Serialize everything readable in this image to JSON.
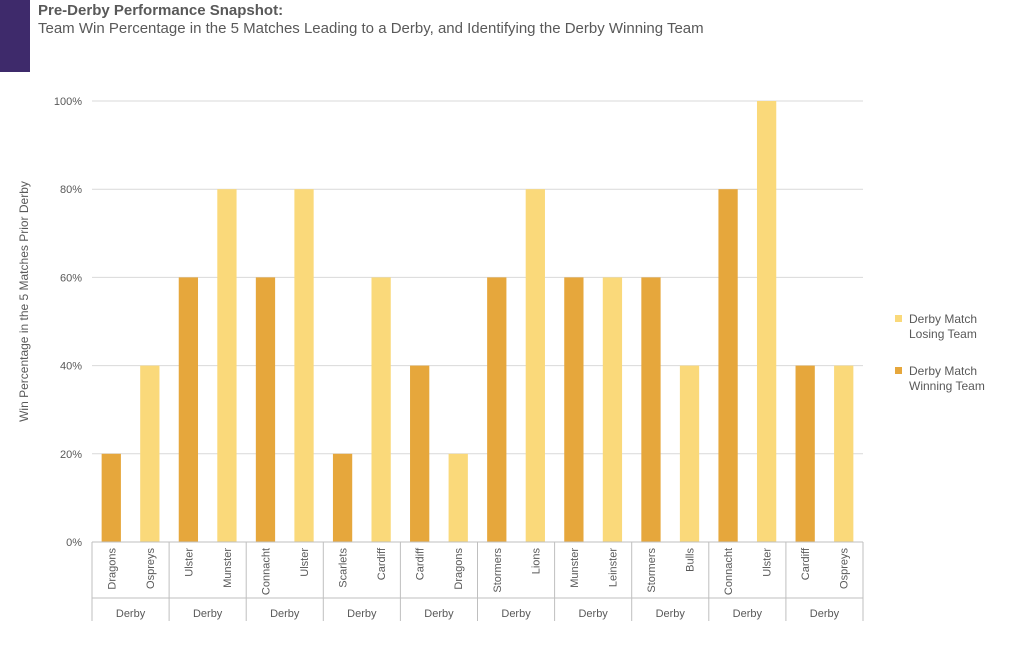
{
  "header": {
    "title": "Pre-Derby Performance Snapshot:",
    "subtitle": "Team Win Percentage in the 5 Matches Leading to a Derby, and Identifying the Derby Winning Team",
    "accent_color": "#3e2a6b"
  },
  "chart_data": {
    "type": "bar",
    "title": "Pre-Derby Performance Snapshot:",
    "subtitle": "Team Win Percentage in the 5 Matches Leading to a Derby, and Identifying the Derby Winning Team",
    "xlabel": "",
    "ylabel": "Win Percentage in the 5 Matches Prior Derby",
    "ylim": [
      0,
      100
    ],
    "yticks": [
      "0%",
      "20%",
      "40%",
      "60%",
      "80%",
      "100%"
    ],
    "grid": true,
    "legend_position": "right",
    "groups": [
      {
        "label": "Derby",
        "teams": [
          {
            "team": "Dragons",
            "value": 20,
            "result": "winning"
          },
          {
            "team": "Ospreys",
            "value": 40,
            "result": "losing"
          }
        ]
      },
      {
        "label": "Derby",
        "teams": [
          {
            "team": "Ulster",
            "value": 60,
            "result": "winning"
          },
          {
            "team": "Munster",
            "value": 80,
            "result": "losing"
          }
        ]
      },
      {
        "label": "Derby",
        "teams": [
          {
            "team": "Connacht",
            "value": 60,
            "result": "winning"
          },
          {
            "team": "Ulster",
            "value": 80,
            "result": "losing"
          }
        ]
      },
      {
        "label": "Derby",
        "teams": [
          {
            "team": "Scarlets",
            "value": 20,
            "result": "winning"
          },
          {
            "team": "Cardiff",
            "value": 60,
            "result": "losing"
          }
        ]
      },
      {
        "label": "Derby",
        "teams": [
          {
            "team": "Cardiff",
            "value": 40,
            "result": "winning"
          },
          {
            "team": "Dragons",
            "value": 20,
            "result": "losing"
          }
        ]
      },
      {
        "label": "Derby",
        "teams": [
          {
            "team": "Stormers",
            "value": 60,
            "result": "winning"
          },
          {
            "team": "Lions",
            "value": 80,
            "result": "losing"
          }
        ]
      },
      {
        "label": "Derby",
        "teams": [
          {
            "team": "Munster",
            "value": 60,
            "result": "winning"
          },
          {
            "team": "Leinster",
            "value": 60,
            "result": "losing"
          }
        ]
      },
      {
        "label": "Derby",
        "teams": [
          {
            "team": "Stormers",
            "value": 60,
            "result": "winning"
          },
          {
            "team": "Bulls",
            "value": 40,
            "result": "losing"
          }
        ]
      },
      {
        "label": "Derby",
        "teams": [
          {
            "team": "Connacht",
            "value": 80,
            "result": "winning"
          },
          {
            "team": "Ulster",
            "value": 100,
            "result": "losing"
          }
        ]
      },
      {
        "label": "Derby",
        "teams": [
          {
            "team": "Cardiff",
            "value": 40,
            "result": "winning"
          },
          {
            "team": "Ospreys",
            "value": 40,
            "result": "losing"
          }
        ]
      }
    ],
    "series": [
      {
        "key": "losing",
        "name": "Derby Match Losing Team",
        "color": "#fad97a"
      },
      {
        "key": "winning",
        "name": "Derby Match Winning Team",
        "color": "#e6a73c"
      }
    ]
  }
}
